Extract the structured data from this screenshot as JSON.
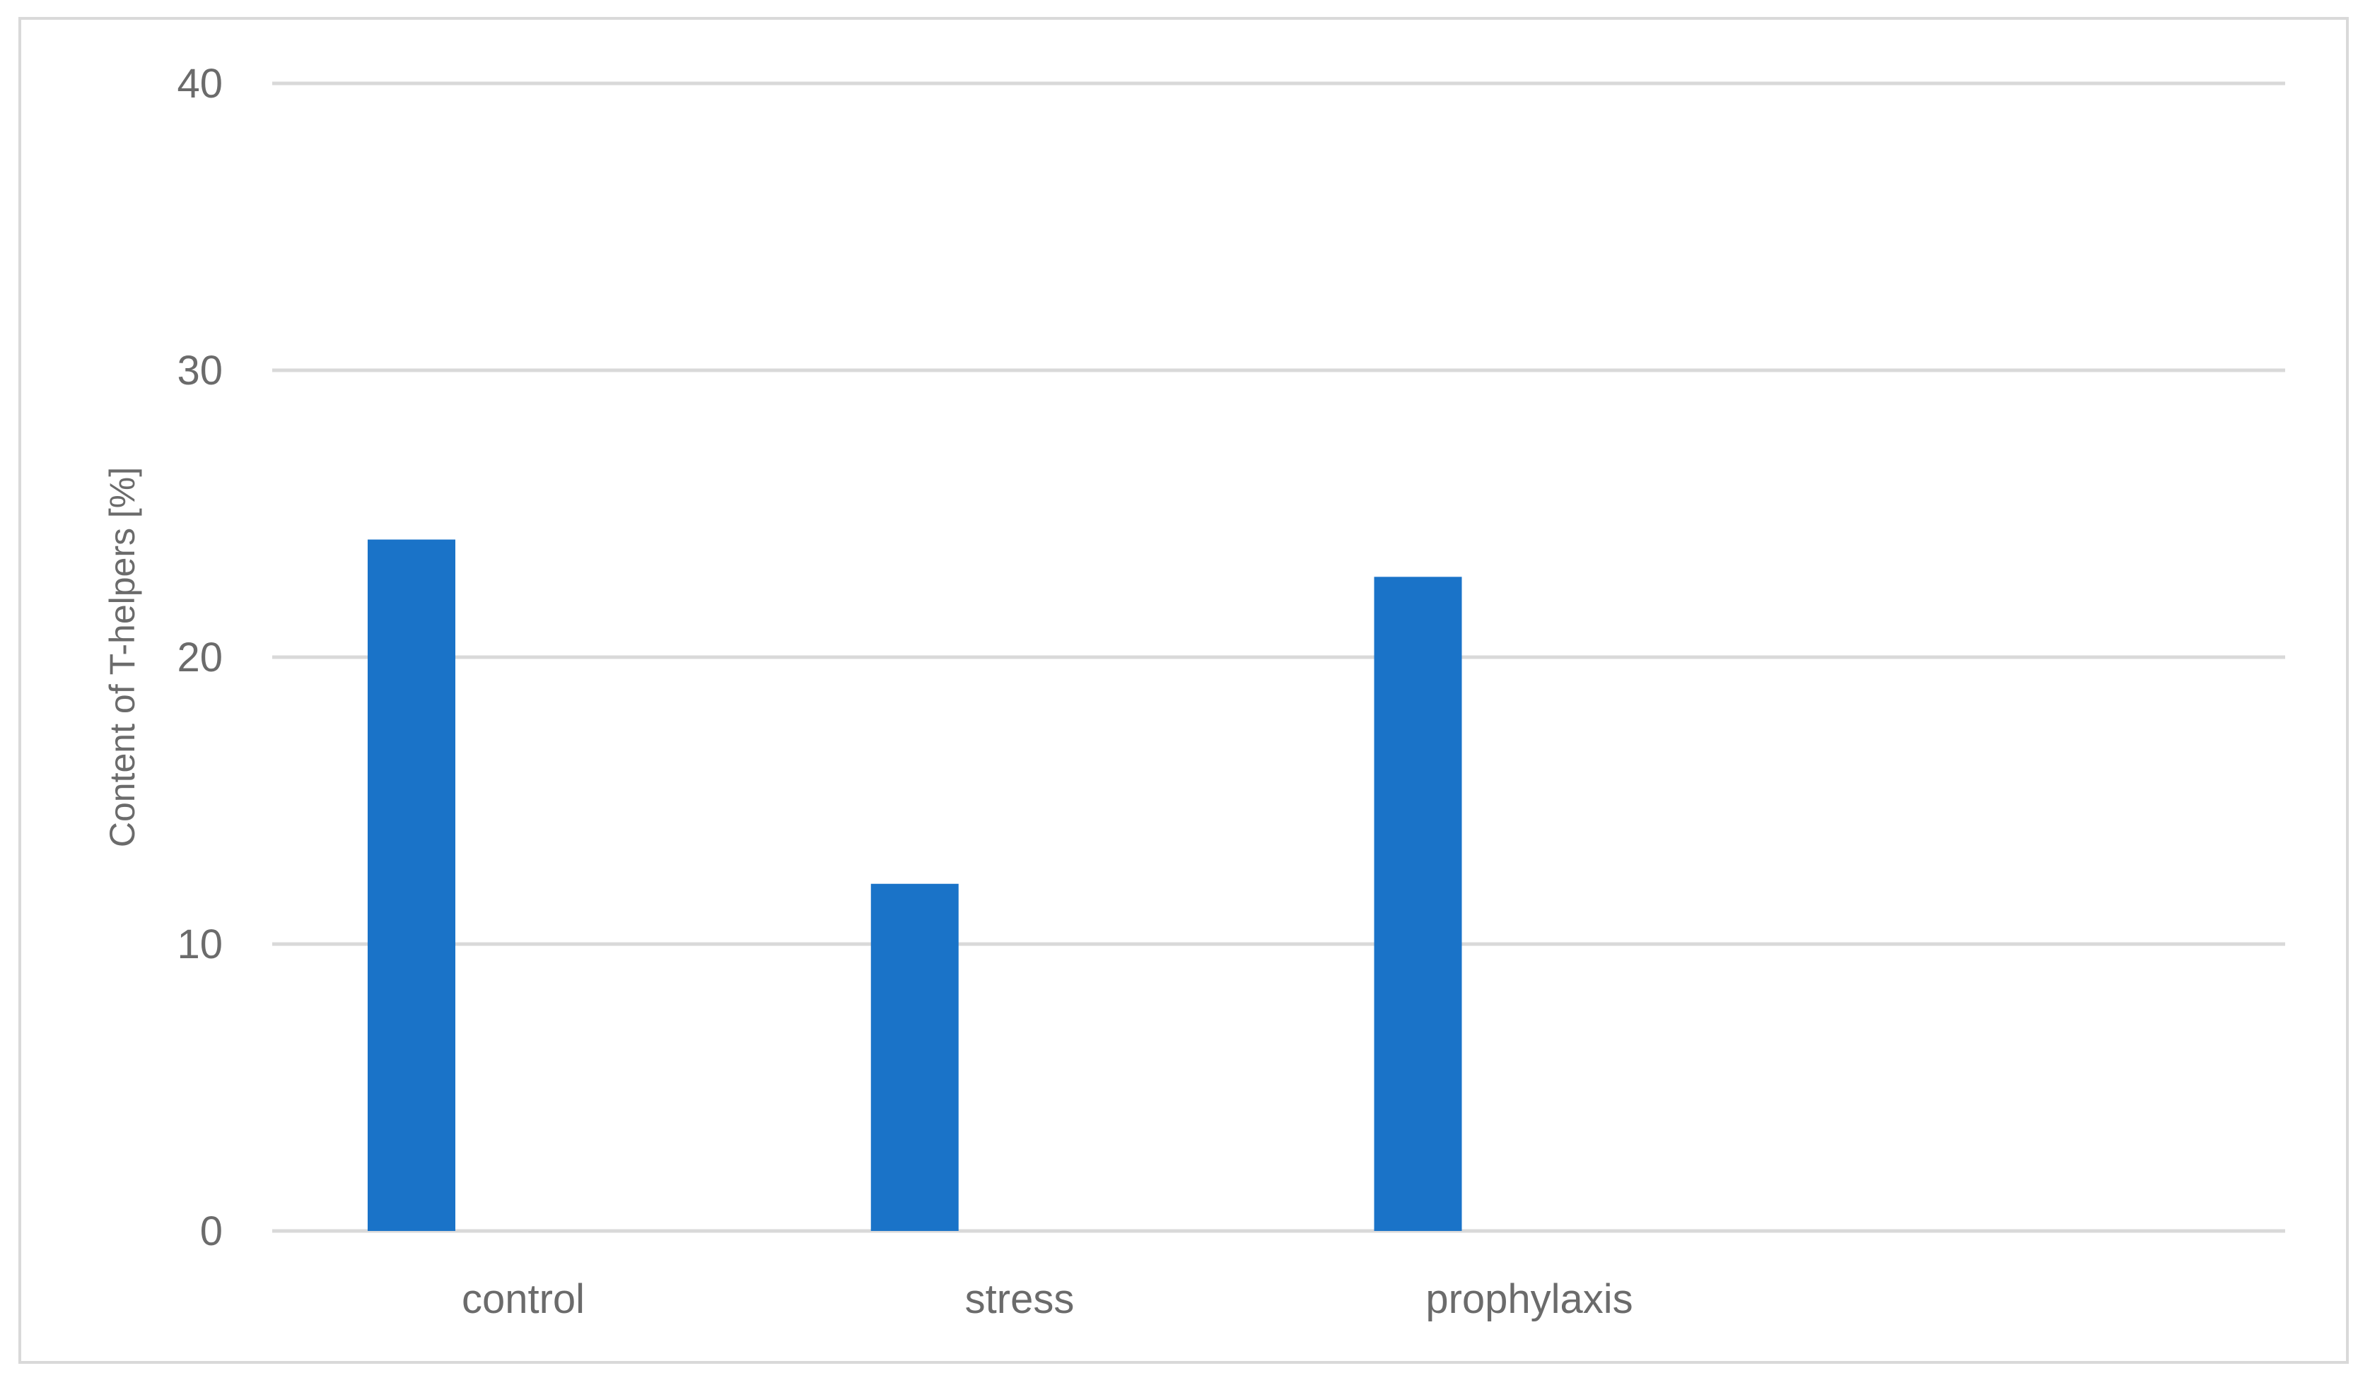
{
  "chart_data": {
    "type": "bar",
    "title": "",
    "xlabel": "",
    "ylabel": "Content of T-helpers  [%]",
    "categories": [
      "control",
      "stress",
      "prophylaxis",
      ""
    ],
    "values": [
      24.1,
      12.1,
      22.8,
      null
    ],
    "ylim": [
      0,
      40
    ],
    "yticks": [
      0,
      10,
      20,
      30,
      40
    ],
    "grid": true,
    "legend": "none",
    "bar_color": "#1a73c8",
    "gridline_color": "#d9d9d9",
    "text_color": "#6b6b6b"
  }
}
